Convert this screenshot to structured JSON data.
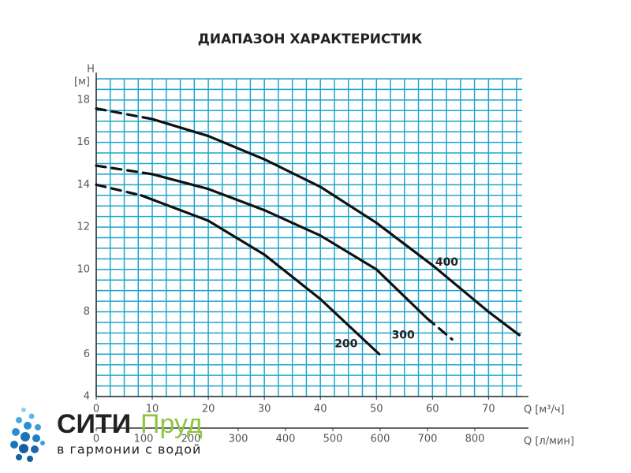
{
  "chart_data": {
    "type": "line",
    "title": "ДИАПАЗОН ХАРАКТЕРИСТИК",
    "y_label": "H",
    "y_unit": "[м]",
    "x_label": "Q [м³/ч]",
    "x2_label": "Q [л/мин]",
    "xlim": [
      0,
      76
    ],
    "ylim": [
      4,
      19
    ],
    "x2lim": [
      0,
      900
    ],
    "xticks": [
      0,
      10,
      20,
      30,
      40,
      50,
      60,
      70
    ],
    "yticks": [
      4,
      6,
      8,
      10,
      12,
      14,
      16,
      18
    ],
    "x2ticks": [
      0,
      100,
      200,
      300,
      400,
      500,
      600,
      700,
      800
    ],
    "grid": true,
    "xgrid_step": 2.5,
    "ygrid_step": 0.5,
    "grid_color": "#1ea5cc",
    "series": [
      {
        "name": "400",
        "color": "#111111",
        "x": [
          0,
          10,
          20,
          30,
          40,
          50,
          60,
          70,
          75.5
        ],
        "values": [
          17.6,
          17.1,
          16.3,
          15.2,
          13.9,
          12.2,
          10.2,
          8.0,
          6.9
        ],
        "line_style": [
          "dashed",
          "solid",
          "solid",
          "solid",
          "solid",
          "solid",
          "solid",
          "solid"
        ]
      },
      {
        "name": "300",
        "color": "#111111",
        "x": [
          0,
          10,
          20,
          30,
          40,
          50,
          59,
          63.5
        ],
        "values": [
          14.9,
          14.5,
          13.8,
          12.8,
          11.6,
          10.0,
          7.7,
          6.7
        ],
        "line_style": [
          "dashed",
          "solid",
          "solid",
          "solid",
          "solid",
          "solid",
          "dashed"
        ]
      },
      {
        "name": "200",
        "color": "#111111",
        "x": [
          0,
          8,
          20,
          30,
          40,
          50.5
        ],
        "values": [
          14.0,
          13.5,
          12.3,
          10.7,
          8.6,
          6.0
        ],
        "line_style": [
          "dashed",
          "solid",
          "solid",
          "solid",
          "solid"
        ]
      }
    ]
  },
  "logo": {
    "name1": "СИТИ",
    "name2": "Пруд",
    "tagline": "в гармонии с водой"
  }
}
